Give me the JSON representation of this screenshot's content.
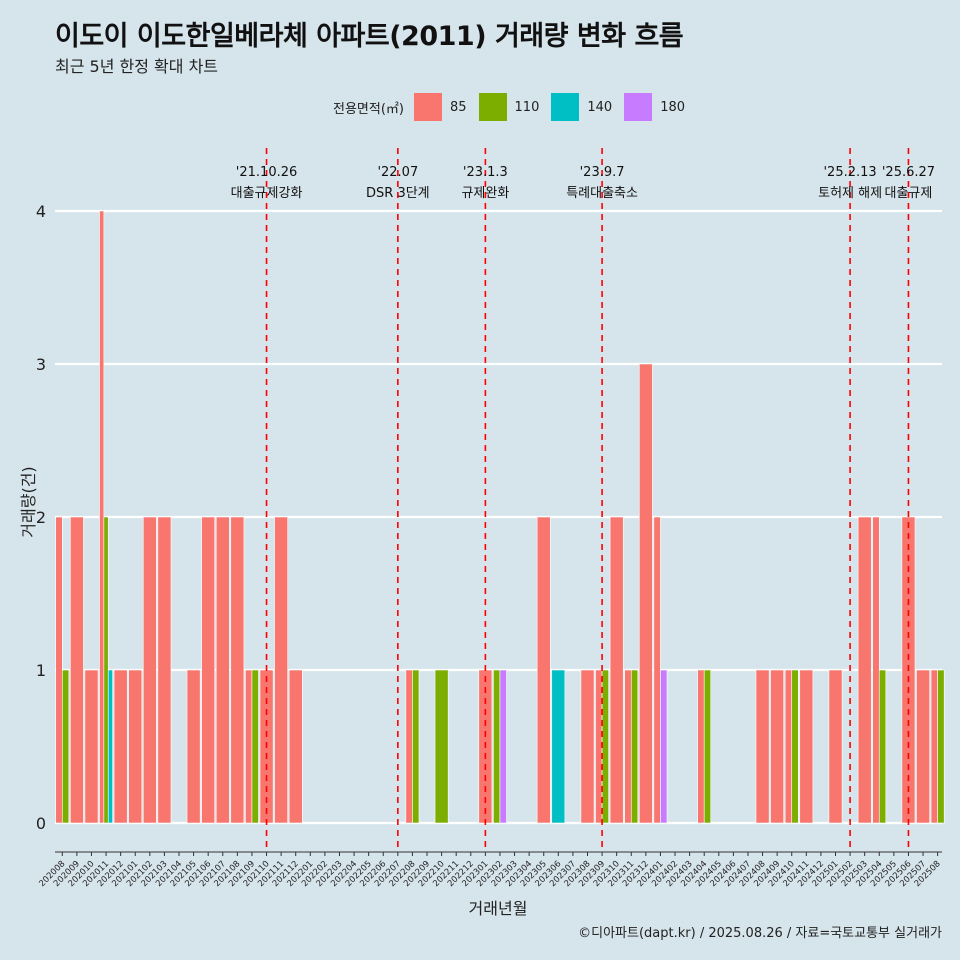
{
  "title": "이도이 이도한일베라체 아파트(2011) 거래량 변화 흐름",
  "subtitle": "최근 5년 한정 확대 차트",
  "caption": "©디아파트(dapt.kr) / 2025.08.26 / 자료=국토교통부 실거래가",
  "legend": {
    "title": "전용면적(㎡)",
    "items": [
      {
        "label": "85",
        "color": "#f8766d"
      },
      {
        "label": "110",
        "color": "#7cae00"
      },
      {
        "label": "140",
        "color": "#00bfc4"
      },
      {
        "label": "180",
        "color": "#c77cff"
      }
    ]
  },
  "colors": {
    "background": "#d6e4eb",
    "grid": "#ffffff",
    "event_line": "#ff0000"
  },
  "chart_data": {
    "type": "bar",
    "xlabel": "거래년월",
    "ylabel": "거래량(건)",
    "ylim": [
      0,
      4
    ],
    "y_ticks": [
      0,
      1,
      2,
      3,
      4
    ],
    "categories": [
      "202008",
      "202009",
      "202010",
      "202011",
      "202012",
      "202101",
      "202102",
      "202103",
      "202104",
      "202105",
      "202106",
      "202107",
      "202108",
      "202109",
      "202110",
      "202111",
      "202112",
      "202201",
      "202202",
      "202203",
      "202204",
      "202205",
      "202206",
      "202207",
      "202208",
      "202209",
      "202210",
      "202211",
      "202212",
      "202301",
      "202302",
      "202303",
      "202304",
      "202305",
      "202306",
      "202307",
      "202308",
      "202309",
      "202310",
      "202311",
      "202312",
      "202401",
      "202402",
      "202403",
      "202404",
      "202405",
      "202406",
      "202407",
      "202408",
      "202409",
      "202410",
      "202411",
      "202412",
      "202501",
      "202502",
      "202503",
      "202504",
      "202505",
      "202506",
      "202507",
      "202508"
    ],
    "series": [
      {
        "name": "85",
        "color": "#f8766d",
        "values": [
          2,
          2,
          1,
          4,
          1,
          1,
          2,
          2,
          0,
          1,
          2,
          2,
          2,
          1,
          1,
          2,
          1,
          0,
          0,
          0,
          0,
          0,
          0,
          0,
          1,
          0,
          0,
          0,
          0,
          1,
          0,
          0,
          0,
          2,
          0,
          0,
          1,
          1,
          2,
          1,
          3,
          2,
          0,
          0,
          1,
          0,
          0,
          0,
          1,
          1,
          1,
          1,
          0,
          1,
          0,
          2,
          2,
          0,
          2,
          1,
          1
        ]
      },
      {
        "name": "110",
        "color": "#7cae00",
        "values": [
          1,
          0,
          0,
          2,
          0,
          0,
          0,
          0,
          0,
          0,
          0,
          0,
          0,
          1,
          0,
          0,
          0,
          0,
          0,
          0,
          0,
          0,
          0,
          0,
          1,
          0,
          1,
          0,
          0,
          0,
          1,
          0,
          0,
          0,
          0,
          0,
          0,
          1,
          0,
          1,
          0,
          0,
          0,
          0,
          1,
          0,
          0,
          0,
          0,
          0,
          1,
          0,
          0,
          0,
          0,
          0,
          1,
          0,
          0,
          0,
          1
        ]
      },
      {
        "name": "140",
        "color": "#00bfc4",
        "values": [
          0,
          0,
          0,
          1,
          0,
          0,
          0,
          0,
          0,
          0,
          0,
          0,
          0,
          0,
          0,
          0,
          0,
          0,
          0,
          0,
          0,
          0,
          0,
          0,
          0,
          0,
          0,
          0,
          0,
          0,
          0,
          0,
          0,
          0,
          1,
          0,
          0,
          0,
          0,
          0,
          0,
          0,
          0,
          0,
          0,
          0,
          0,
          0,
          0,
          0,
          0,
          0,
          0,
          0,
          0,
          0,
          0,
          0,
          0,
          0,
          0
        ]
      },
      {
        "name": "180",
        "color": "#c77cff",
        "values": [
          0,
          0,
          0,
          0,
          0,
          0,
          0,
          0,
          0,
          0,
          0,
          0,
          0,
          0,
          0,
          0,
          0,
          0,
          0,
          0,
          0,
          0,
          0,
          0,
          0,
          0,
          0,
          0,
          0,
          0,
          1,
          0,
          0,
          0,
          0,
          0,
          0,
          0,
          0,
          0,
          0,
          1,
          0,
          0,
          0,
          0,
          0,
          0,
          0,
          0,
          0,
          0,
          0,
          0,
          0,
          0,
          0,
          0,
          0,
          0,
          0
        ]
      }
    ],
    "events": [
      {
        "date": "'21.10.26",
        "label": "대출규제강화",
        "x": "202110"
      },
      {
        "date": "'22.07",
        "label": "DSR 3단계",
        "x": "202207"
      },
      {
        "date": "'23.1.3",
        "label": "규제완화",
        "x": "202301"
      },
      {
        "date": "'23.9.7",
        "label": "특례대출축소",
        "x": "202309"
      },
      {
        "date": "'25.2.13",
        "label": "토허제 해제",
        "x": "202502"
      },
      {
        "date": "'25.6.27",
        "label": "대출규제",
        "x": "202506"
      }
    ]
  }
}
